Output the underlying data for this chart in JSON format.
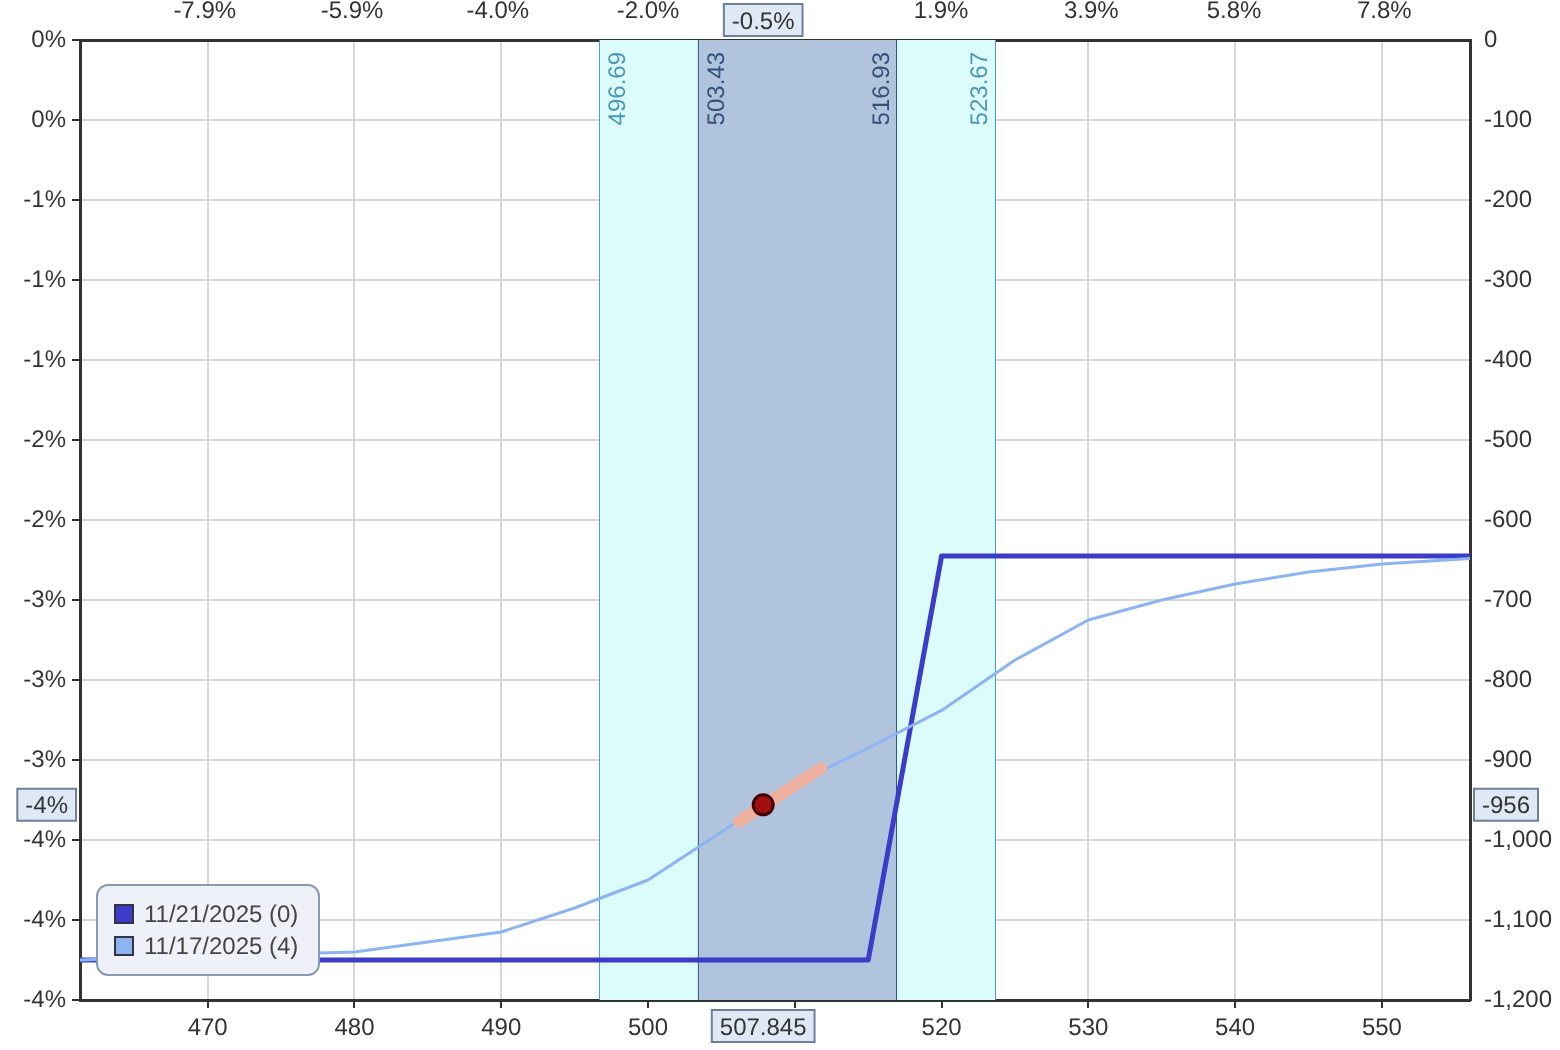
{
  "chart_data": {
    "type": "line",
    "xlim": [
      461.3,
      556
    ],
    "xticks": [
      470,
      480,
      490,
      500,
      {
        "value": 510,
        "label": null
      },
      520,
      530,
      540,
      550
    ],
    "x2lim": [
      -9.56,
      8.94
    ],
    "x2ticks": [
      {
        "value": -7.9,
        "label": "-7.9%"
      },
      {
        "value": -5.94,
        "label": "-5.9%"
      },
      {
        "value": -4.0,
        "label": "-4.0%"
      },
      {
        "value": -2.0,
        "label": "-2.0%"
      },
      {
        "value": -0.06,
        "label": null
      },
      {
        "value": 1.9,
        "label": "1.9%"
      },
      {
        "value": 3.9,
        "label": "3.9%"
      },
      {
        "value": 5.8,
        "label": "5.8%"
      },
      {
        "value": 7.8,
        "label": "7.8%"
      }
    ],
    "ylim": [
      -4.44,
      0
    ],
    "yticks": [
      {
        "value": 0,
        "label": "0%"
      },
      {
        "value": -0.37,
        "label": "0%"
      },
      {
        "value": -0.74,
        "label": "-1%"
      },
      {
        "value": -1.11,
        "label": "-1%"
      },
      {
        "value": -1.48,
        "label": "-1%"
      },
      {
        "value": -1.85,
        "label": "-2%"
      },
      {
        "value": -2.22,
        "label": "-2%"
      },
      {
        "value": -2.59,
        "label": "-3%"
      },
      {
        "value": -2.96,
        "label": "-3%"
      },
      {
        "value": -3.33,
        "label": "-3%"
      },
      {
        "value": -3.7,
        "label": "-4%"
      },
      {
        "value": -4.07,
        "label": "-4%"
      },
      {
        "value": -4.44,
        "label": "-4%"
      }
    ],
    "y2lim": [
      -1200,
      0
    ],
    "y2ticks": [
      0,
      -100,
      -200,
      -300,
      -400,
      -500,
      -600,
      -700,
      -800,
      -900,
      {
        "value": -1000,
        "label": "-1,000"
      },
      {
        "value": -1100,
        "label": "-1,100"
      },
      {
        "value": -1200,
        "label": "-1,200"
      }
    ],
    "bands": [
      {
        "axis": "x",
        "from": 496.69,
        "to": 523.67,
        "color": "#dcfcfc"
      },
      {
        "axis": "x",
        "from": 503.43,
        "to": 516.93,
        "color": "#b0c4de"
      }
    ],
    "ref_lines": [
      {
        "axis": "x",
        "value": 496.69,
        "label": "496.69",
        "color": "#4f97b5"
      },
      {
        "axis": "x",
        "value": 503.43,
        "label": "503.43",
        "color": "#34507a"
      },
      {
        "axis": "x",
        "value": 516.93,
        "label": "516.93",
        "color": "#34507a"
      },
      {
        "axis": "x",
        "value": 523.67,
        "label": "523.67",
        "color": "#4f97b5"
      }
    ],
    "series": [
      {
        "name": "11/21/2025 (0)",
        "color": "#3c3cc8",
        "axis": "y2",
        "x": [
          461.3,
          515,
          520,
          556
        ],
        "values": [
          -1150,
          -1150,
          -645,
          -645
        ]
      },
      {
        "name": "11/17/2025 (4)",
        "color": "#8cb4f0",
        "axis": "y2",
        "x": [
          461.3,
          480,
          490,
          495,
          500,
          505,
          510,
          515,
          520,
          525,
          530,
          535,
          540,
          545,
          550,
          556
        ],
        "values": [
          -1150,
          -1140,
          -1115,
          -1085,
          -1050,
          -990,
          -930,
          -885,
          -838,
          -775,
          -725,
          -700,
          -680,
          -665,
          -655,
          -648
        ]
      },
      {
        "color": "#f0b0a0",
        "axis": "y2",
        "x": [
          506.2,
          511.8
        ],
        "values": [
          -977,
          -910
        ]
      },
      {
        "type": "scatter",
        "marker": "circle",
        "color": "#a01010",
        "axis": "y2",
        "x": [
          507.845
        ],
        "values": [
          -956
        ]
      }
    ],
    "annotations": [
      "-0.5%",
      "507.845",
      "-4%",
      "-956"
    ],
    "marker": "none",
    "grid": true,
    "legend": "bottom left"
  }
}
